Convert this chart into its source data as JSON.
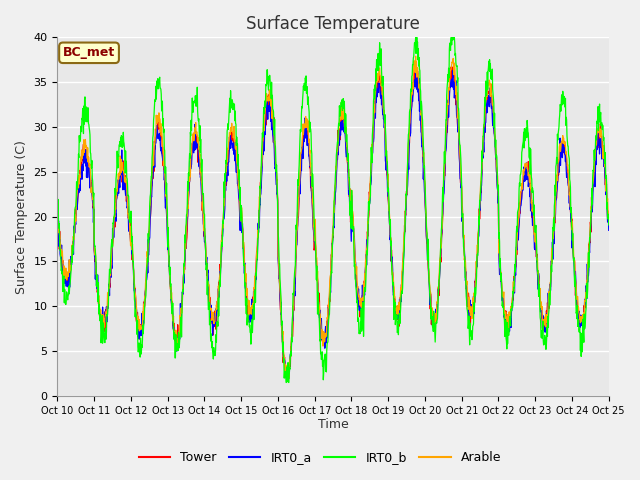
{
  "title": "Surface Temperature",
  "xlabel": "Time",
  "ylabel": "Surface Temperature (C)",
  "ylim": [
    0,
    40
  ],
  "annotation": "BC_met",
  "legend_entries": [
    "Tower",
    "IRT0_a",
    "IRT0_b",
    "Arable"
  ],
  "legend_colors": [
    "#ff0000",
    "#0000ff",
    "#00ff00",
    "#ffa500"
  ],
  "x_tick_labels": [
    "Oct 10",
    "Oct 11",
    "Oct 12",
    "Oct 13",
    "Oct 14",
    "Oct 15",
    "Oct 16",
    "Oct 17",
    "Oct 18",
    "Oct 19",
    "Oct 20",
    "Oct 21",
    "Oct 22",
    "Oct 23",
    "Oct 24",
    "Oct 25"
  ],
  "background_color": "#f0f0f0",
  "plot_bg_color": "#e8e8e8",
  "grid_color": "#ffffff",
  "n_days": 15,
  "pts_per_day": 96
}
